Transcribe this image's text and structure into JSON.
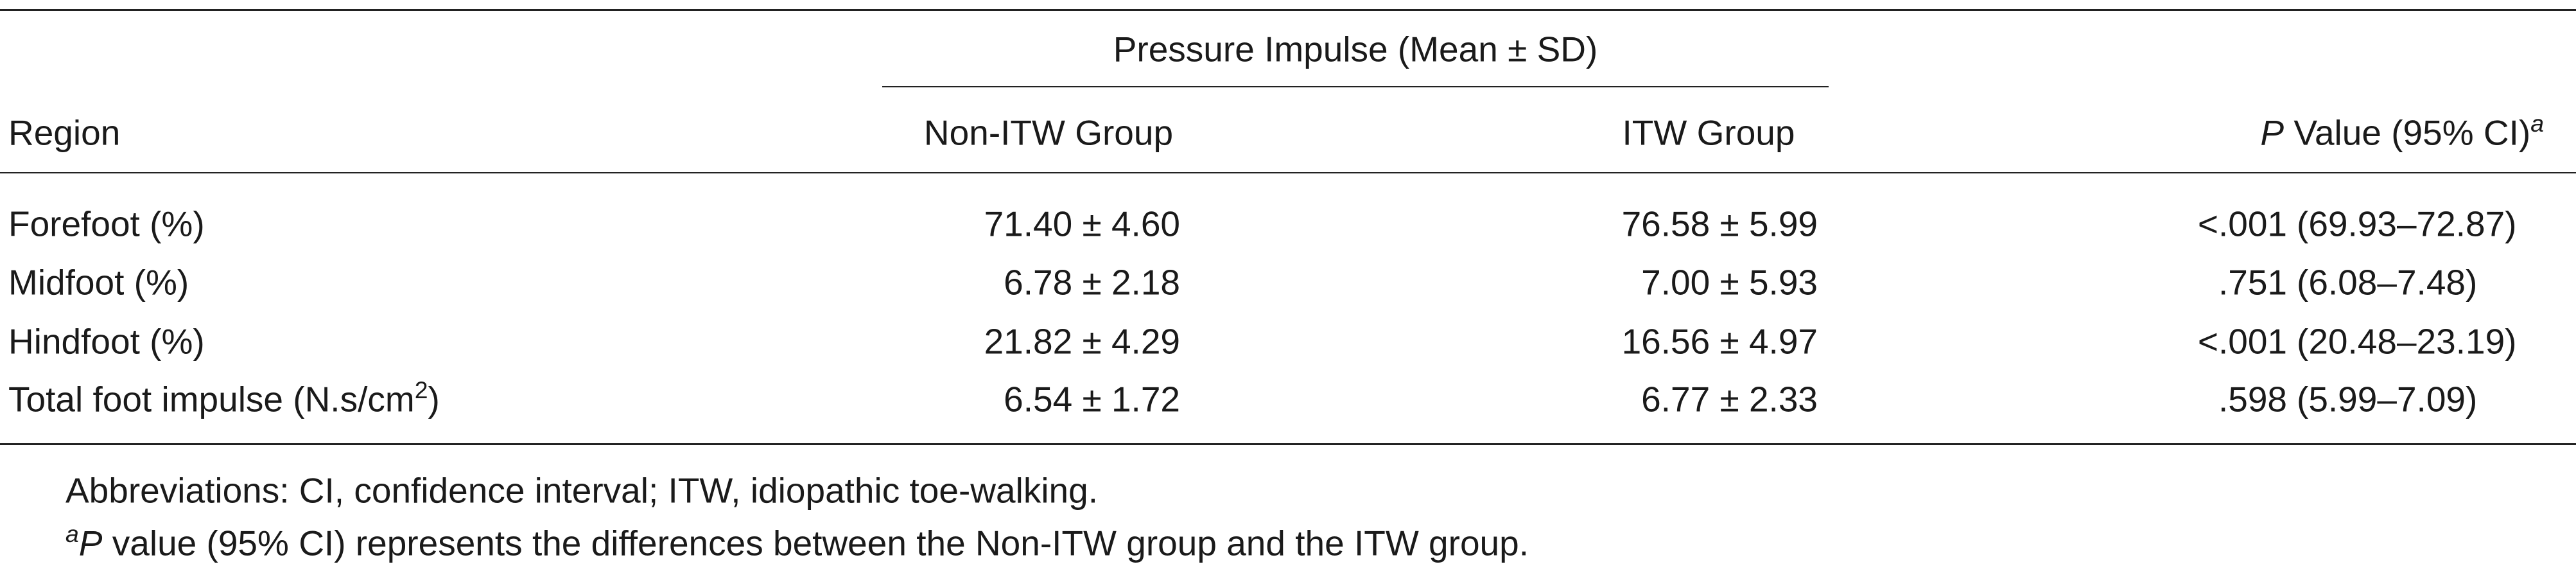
{
  "table": {
    "group_header": "Pressure Impulse (Mean ± SD)",
    "columns": [
      "Region",
      "Non-ITW Group",
      "ITW Group",
      {
        "italic": "P",
        "text": " Value (95% CI)",
        "sup": "a"
      }
    ],
    "rows": [
      [
        {
          "text": "Forefoot (%)"
        },
        "71.40 ± 4.60",
        "76.58 ± 5.99",
        {
          "p": "<.001",
          "ci": "(69.93–72.87)"
        }
      ],
      [
        {
          "text": "Midfoot (%)"
        },
        "6.78 ± 2.18",
        "7.00 ± 5.93",
        {
          "p": ".751",
          "ci": "(6.08–7.48)"
        }
      ],
      [
        {
          "text": "Hindfoot (%)"
        },
        "21.82 ± 4.29",
        "16.56 ± 4.97",
        {
          "p": "<.001",
          "ci": "(20.48–23.19)"
        }
      ],
      [
        {
          "text": "Total foot impulse (N.s/cm",
          "sup": "2",
          "after": ")"
        },
        "6.54 ± 1.72",
        "6.77 ± 2.33",
        {
          "p": ".598",
          "ci": "(5.99–7.09)"
        }
      ]
    ]
  },
  "footnotes": [
    "Abbreviations: CI, confidence interval; ITW, idiopathic toe-walking.",
    {
      "marker": "a",
      "italic": "P",
      "text": " value (95% CI) represents the differences between the Non-ITW group and the ITW group."
    }
  ]
}
